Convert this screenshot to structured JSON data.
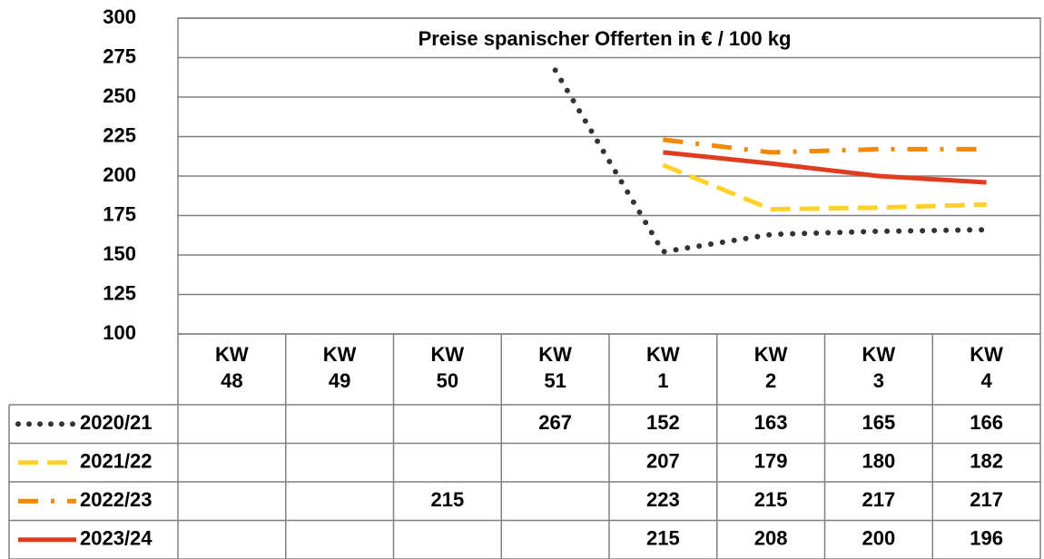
{
  "chart_data": {
    "type": "line",
    "title": "Preise spanischer Offerten in € / 100 kg",
    "categories": [
      "KW 48",
      "KW 49",
      "KW 50",
      "KW 51",
      "KW 1",
      "KW 2",
      "KW 3",
      "KW 4"
    ],
    "series": [
      {
        "name": "2020/21",
        "color": "#333333",
        "style": "dotted",
        "values": [
          null,
          null,
          null,
          267,
          152,
          163,
          165,
          166
        ]
      },
      {
        "name": "2021/22",
        "color": "#ffd12a",
        "style": "dashed",
        "values": [
          null,
          null,
          null,
          null,
          207,
          179,
          180,
          182
        ]
      },
      {
        "name": "2022/23",
        "color": "#f08a00",
        "style": "dashdot",
        "values": [
          null,
          null,
          215,
          null,
          223,
          215,
          217,
          217
        ]
      },
      {
        "name": "2023/24",
        "color": "#e03c1f",
        "style": "solid",
        "values": [
          null,
          null,
          null,
          null,
          215,
          208,
          200,
          196
        ]
      }
    ],
    "ylim": [
      100,
      300
    ],
    "yticks": [
      100,
      125,
      150,
      175,
      200,
      225,
      250,
      275,
      300
    ],
    "grid": true
  }
}
